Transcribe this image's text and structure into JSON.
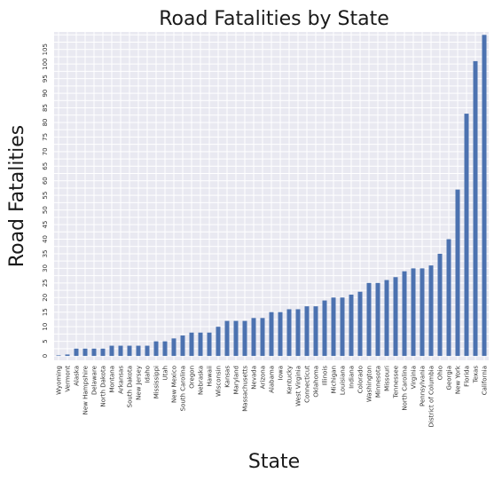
{
  "chart_data": {
    "type": "bar",
    "title": "Road Fatalities by State",
    "xlabel": "State",
    "ylabel": "Road Fatalities",
    "ylim": [
      -1.5,
      111
    ],
    "yticks": [
      0,
      5,
      10,
      15,
      20,
      25,
      30,
      35,
      40,
      45,
      50,
      55,
      60,
      65,
      70,
      75,
      80,
      85,
      90,
      95,
      100,
      105
    ],
    "grid": true,
    "background_color": "#e9e9f1",
    "bar_color": "#4c72b0",
    "categories": [
      "Wyoming",
      "Vermont",
      "Alaska",
      "New Hampshire",
      "Delaware",
      "North Dakota",
      "Montana",
      "Arkansas",
      "South Dakota",
      "New Jersey",
      "Idaho",
      "Mississippi",
      "Utah",
      "New Mexico",
      "South Carolina",
      "Oregon",
      "Nebraska",
      "Hawaii",
      "Wisconsin",
      "Kansas",
      "Maryland",
      "Massachusetts",
      "Nevada",
      "Arizona",
      "Alabama",
      "Iowa",
      "Kentucky",
      "West Virginia",
      "Connecticut",
      "Oklahoma",
      "Illinois",
      "Michigan",
      "Louisiana",
      "Indiana",
      "Colorado",
      "Washington",
      "Minnesota",
      "Missouri",
      "Tennessee",
      "North Carolina",
      "Virginia",
      "Pennsylvania",
      "District of Columbia",
      "Ohio",
      "Georgia",
      "New York",
      "Florida",
      "Texas",
      "California"
    ],
    "values": [
      0.2,
      0.5,
      2.5,
      2.5,
      2.5,
      2.5,
      3.5,
      3.5,
      3.5,
      3.5,
      3.5,
      5,
      5,
      6,
      7,
      8,
      8,
      8,
      10,
      12,
      12,
      12,
      13,
      13,
      15,
      15,
      16,
      16,
      17,
      17,
      19,
      20,
      20,
      21,
      22,
      25,
      25,
      26,
      27,
      29,
      30,
      30,
      31,
      35,
      40,
      57,
      83,
      101,
      110
    ]
  }
}
